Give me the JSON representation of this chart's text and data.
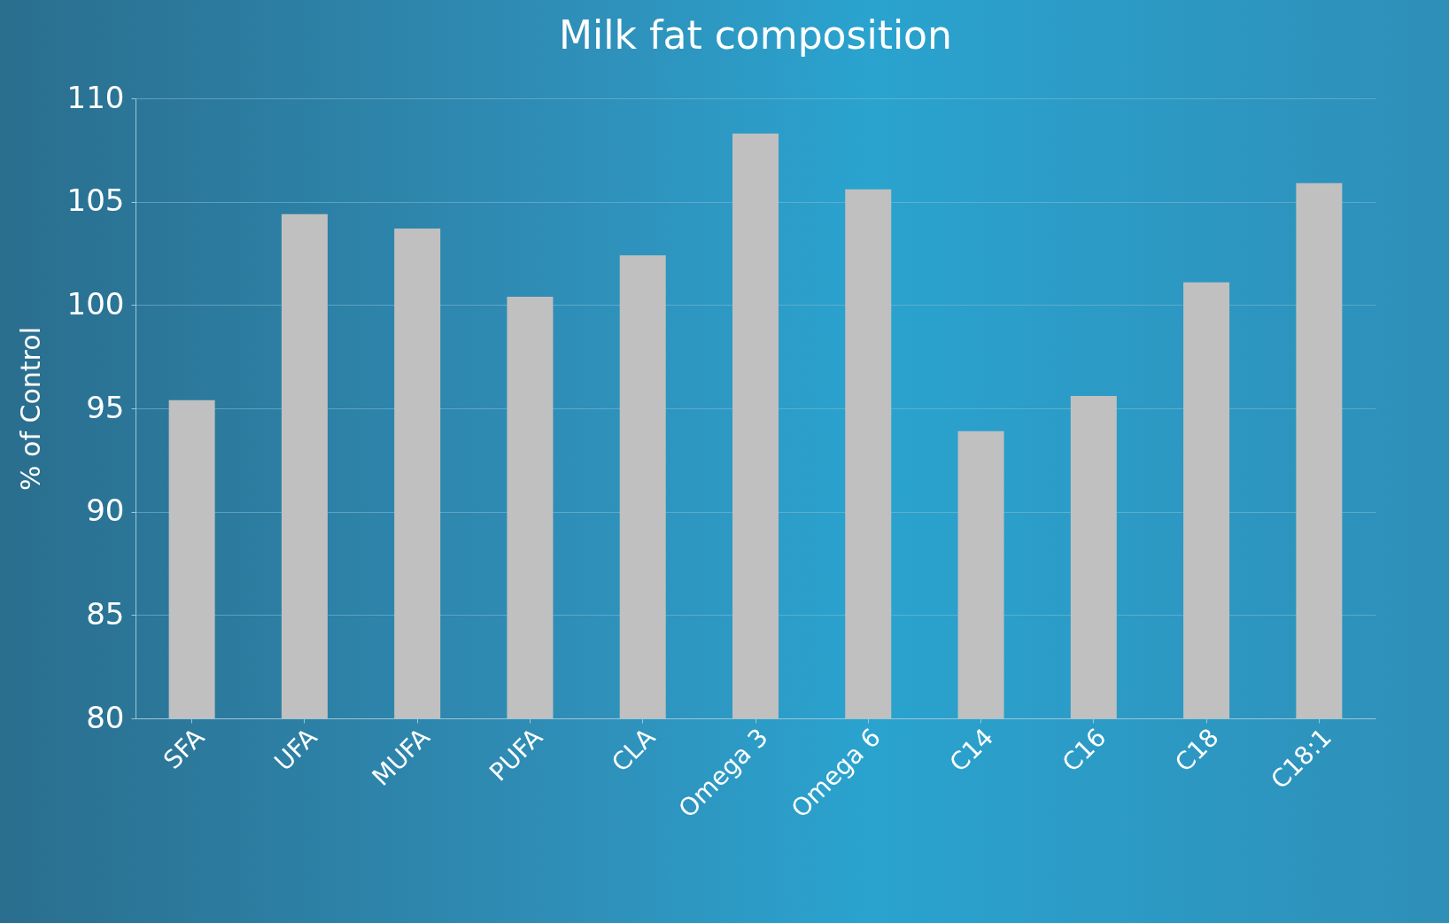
{
  "chart_data": {
    "type": "bar",
    "title": "Milk fat composition",
    "ylabel": "% of Control",
    "categories": [
      "SFA",
      "UFA",
      "MUFA",
      "PUFA",
      "CLA",
      "Omega 3",
      "Omega 6",
      "C14",
      "C16",
      "C18",
      "C18:1"
    ],
    "values": [
      95.4,
      104.4,
      103.7,
      100.4,
      102.4,
      108.3,
      105.6,
      93.9,
      95.6,
      101.1,
      105.9
    ],
    "color": "#c0c0c0",
    "ylim": [
      80,
      110
    ],
    "yticks": [
      80,
      85,
      90,
      95,
      100,
      105,
      110
    ],
    "grid": "y"
  }
}
